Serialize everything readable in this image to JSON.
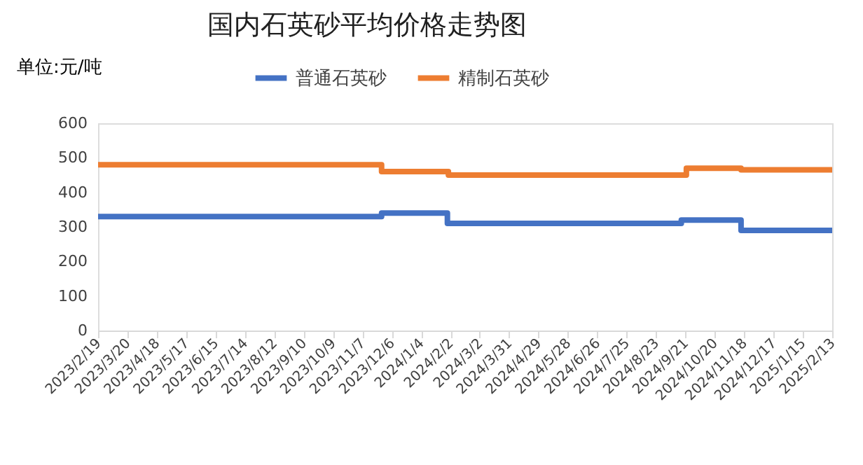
{
  "chart_data": {
    "type": "step",
    "title": "国内石英砂平均价格走势图",
    "ylabel": "单位:元/吨",
    "xlim": [
      "2023-02-19",
      "2025-02-13"
    ],
    "xticks": [
      {
        "value": "2023-02-19",
        "label": "2023/2/19"
      },
      {
        "value": "2023-03-20",
        "label": "2023/3/20"
      },
      {
        "value": "2023-04-18",
        "label": "2023/4/18"
      },
      {
        "value": "2023-05-17",
        "label": "2023/5/17"
      },
      {
        "value": "2023-06-15",
        "label": "2023/6/15"
      },
      {
        "value": "2023-07-14",
        "label": "2023/7/14"
      },
      {
        "value": "2023-08-12",
        "label": "2023/8/12"
      },
      {
        "value": "2023-09-10",
        "label": "2023/9/10"
      },
      {
        "value": "2023-10-09",
        "label": "2023/10/9"
      },
      {
        "value": "2023-11-07",
        "label": "2023/11/7"
      },
      {
        "value": "2023-12-06",
        "label": "2023/12/6"
      },
      {
        "value": "2024-01-04",
        "label": "2024/1/4"
      },
      {
        "value": "2024-02-02",
        "label": "2024/2/2"
      },
      {
        "value": "2024-03-02",
        "label": "2024/3/2"
      },
      {
        "value": "2024-03-31",
        "label": "2024/3/31"
      },
      {
        "value": "2024-04-29",
        "label": "2024/4/29"
      },
      {
        "value": "2024-05-28",
        "label": "2024/5/28"
      },
      {
        "value": "2024-06-26",
        "label": "2024/6/26"
      },
      {
        "value": "2024-07-25",
        "label": "2024/7/25"
      },
      {
        "value": "2024-08-23",
        "label": "2024/8/23"
      },
      {
        "value": "2024-09-21",
        "label": "2024/9/21"
      },
      {
        "value": "2024-10-20",
        "label": "2024/10/20"
      },
      {
        "value": "2024-11-18",
        "label": "2024/11/18"
      },
      {
        "value": "2024-12-17",
        "label": "2024/12/17"
      },
      {
        "value": "2025-01-15",
        "label": "2025/1/15"
      },
      {
        "value": "2025-02-13",
        "label": "2025/2/13"
      }
    ],
    "ylim": [
      0,
      600
    ],
    "yticks": [
      0,
      100,
      200,
      300,
      400,
      500,
      600
    ],
    "grid": false,
    "legend": "top",
    "line_style": "solid",
    "marker": "none",
    "series": [
      {
        "name": "普通石英砂",
        "color": "#4472c4",
        "x": [
          "2023-02-19",
          "2023-11-26",
          "2024-01-30",
          "2024-09-17",
          "2024-11-15",
          "2025-02-13"
        ],
        "values": [
          330,
          340,
          310,
          320,
          290,
          290
        ]
      },
      {
        "name": "精制石英砂",
        "color": "#ed7d31",
        "x": [
          "2023-02-19",
          "2023-11-26",
          "2024-01-31",
          "2024-09-22",
          "2024-11-15",
          "2025-02-13"
        ],
        "values": [
          480,
          460,
          450,
          470,
          465,
          465
        ]
      }
    ]
  }
}
